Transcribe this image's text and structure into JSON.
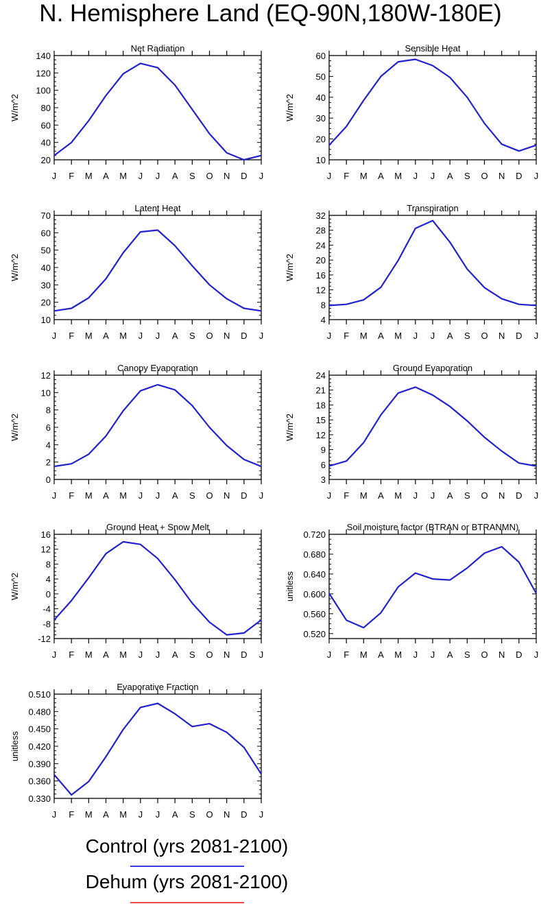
{
  "page_title": "N. Hemisphere Land (EQ-90N,180W-180E)",
  "legend": [
    {
      "label": "Control (yrs 2081-2100)",
      "color": "#3a3adf"
    },
    {
      "label": "Dehum (yrs 2081-2100)",
      "color": "#ef4a4a"
    }
  ],
  "chart_data": [
    {
      "type": "line",
      "title": "Net Radiation",
      "ylabel": "W/m^2",
      "categories": [
        "J",
        "F",
        "M",
        "A",
        "M",
        "J",
        "J",
        "A",
        "S",
        "O",
        "N",
        "D",
        "J"
      ],
      "yticks": [
        "20",
        "40",
        "60",
        "80",
        "100",
        "120",
        "140"
      ],
      "ylim": [
        20,
        140
      ],
      "series": [
        {
          "color": "#2020d0",
          "values": [
            25,
            40,
            65,
            94,
            119,
            131,
            126,
            106,
            78,
            50,
            28,
            20,
            25
          ]
        }
      ]
    },
    {
      "type": "line",
      "title": "Sensible Heat",
      "ylabel": "W/m^2",
      "categories": [
        "J",
        "F",
        "M",
        "A",
        "M",
        "J",
        "J",
        "A",
        "S",
        "O",
        "N",
        "D",
        "J"
      ],
      "yticks": [
        "10",
        "20",
        "30",
        "40",
        "50",
        "60"
      ],
      "ylim": [
        10,
        60
      ],
      "series": [
        {
          "color": "#2020d0",
          "values": [
            17,
            26,
            38.5,
            50,
            57,
            58.2,
            55.2,
            49.5,
            40,
            27.5,
            17.5,
            14.2,
            17
          ]
        }
      ]
    },
    {
      "type": "line",
      "title": "Latent Heat",
      "ylabel": "W/m^2",
      "categories": [
        "J",
        "F",
        "M",
        "A",
        "M",
        "J",
        "J",
        "A",
        "S",
        "O",
        "N",
        "D",
        "J"
      ],
      "yticks": [
        "10",
        "20",
        "30",
        "40",
        "50",
        "60",
        "70"
      ],
      "ylim": [
        10,
        70
      ],
      "series": [
        {
          "color": "#2020d0",
          "values": [
            15,
            16.5,
            22.5,
            33.5,
            48.5,
            60.5,
            61.5,
            52.5,
            41,
            30,
            22,
            16.5,
            15
          ]
        }
      ]
    },
    {
      "type": "line",
      "title": "Transpiration",
      "ylabel": "W/m^2",
      "categories": [
        "J",
        "F",
        "M",
        "A",
        "M",
        "J",
        "J",
        "A",
        "S",
        "O",
        "N",
        "D",
        "J"
      ],
      "yticks": [
        "4",
        "8",
        "12",
        "16",
        "20",
        "24",
        "28",
        "32"
      ],
      "ylim": [
        4,
        32
      ],
      "series": [
        {
          "color": "#2020d0",
          "values": [
            7.8,
            8.1,
            9.3,
            12.7,
            19.9,
            28.5,
            30.6,
            24.8,
            17.6,
            12.6,
            9.6,
            8.1,
            7.8
          ]
        }
      ]
    },
    {
      "type": "line",
      "title": "Canopy Evaporation",
      "ylabel": "W/m^2",
      "categories": [
        "J",
        "F",
        "M",
        "A",
        "M",
        "J",
        "J",
        "A",
        "S",
        "O",
        "N",
        "D",
        "J"
      ],
      "yticks": [
        "0",
        "2",
        "4",
        "6",
        "8",
        "10",
        "12"
      ],
      "ylim": [
        0,
        12
      ],
      "series": [
        {
          "color": "#2020d0",
          "values": [
            1.5,
            1.8,
            2.9,
            5,
            7.9,
            10.2,
            10.9,
            10.3,
            8.5,
            6,
            3.9,
            2.3,
            1.5
          ]
        }
      ]
    },
    {
      "type": "line",
      "title": "Ground Evaporation",
      "ylabel": "W/m^2",
      "categories": [
        "J",
        "F",
        "M",
        "A",
        "M",
        "J",
        "J",
        "A",
        "S",
        "O",
        "N",
        "D",
        "J"
      ],
      "yticks": [
        "3",
        "6",
        "9",
        "12",
        "15",
        "18",
        "21",
        "24"
      ],
      "ylim": [
        3,
        24
      ],
      "series": [
        {
          "color": "#2020d0",
          "values": [
            5.7,
            6.7,
            10.4,
            16,
            20.4,
            21.6,
            20,
            17.7,
            14.8,
            11.5,
            8.7,
            6.3,
            5.7
          ]
        }
      ]
    },
    {
      "type": "line",
      "title": "Ground Heat + Snow Melt",
      "ylabel": "W/m^2",
      "categories": [
        "J",
        "F",
        "M",
        "A",
        "M",
        "J",
        "J",
        "A",
        "S",
        "O",
        "N",
        "D",
        "J"
      ],
      "yticks": [
        "-12",
        "-8",
        "-4",
        "0",
        "4",
        "8",
        "12",
        "16"
      ],
      "ylim": [
        -12,
        16
      ],
      "series": [
        {
          "color": "#2020d0",
          "values": [
            -7,
            -1.8,
            4.3,
            10.8,
            14,
            13.3,
            9.5,
            3.8,
            -2.5,
            -7.6,
            -11,
            -10.5,
            -7
          ]
        }
      ]
    },
    {
      "type": "line",
      "title": "Soil moisture factor (BTRAN or BTRANMN)",
      "ylabel": "unitless",
      "categories": [
        "J",
        "F",
        "M",
        "A",
        "M",
        "J",
        "J",
        "A",
        "S",
        "O",
        "N",
        "D",
        "J"
      ],
      "yticks": [
        "0.520",
        "0.560",
        "0.600",
        "0.640",
        "0.680",
        "0.720"
      ],
      "ylim": [
        0.51,
        0.72
      ],
      "series": [
        {
          "color": "#2020d0",
          "values": [
            0.601,
            0.547,
            0.532,
            0.562,
            0.614,
            0.642,
            0.63,
            0.628,
            0.652,
            0.682,
            0.695,
            0.664,
            0.601
          ]
        }
      ]
    },
    {
      "type": "line",
      "title": "Evaporative Fraction",
      "ylabel": "unitless",
      "categories": [
        "J",
        "F",
        "M",
        "A",
        "M",
        "J",
        "J",
        "A",
        "S",
        "O",
        "N",
        "D",
        "J"
      ],
      "yticks": [
        "0.330",
        "0.360",
        "0.390",
        "0.420",
        "0.450",
        "0.480",
        "0.510"
      ],
      "ylim": [
        0.33,
        0.51
      ],
      "series": [
        {
          "color": "#2020d0",
          "values": [
            0.371,
            0.336,
            0.359,
            0.402,
            0.449,
            0.487,
            0.494,
            0.476,
            0.454,
            0.459,
            0.444,
            0.418,
            0.372
          ]
        }
      ]
    }
  ]
}
